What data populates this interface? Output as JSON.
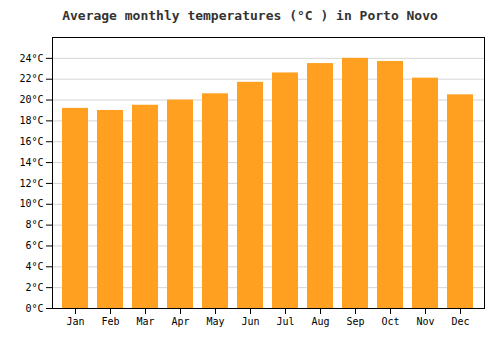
{
  "chart_data": {
    "type": "bar",
    "title": "Average monthly temperatures (°C ) in Porto Novo",
    "categories": [
      "Jan",
      "Feb",
      "Mar",
      "Apr",
      "May",
      "Jun",
      "Jul",
      "Aug",
      "Sep",
      "Oct",
      "Nov",
      "Dec"
    ],
    "values": [
      19.2,
      19.0,
      19.5,
      20.0,
      20.6,
      21.7,
      22.6,
      23.5,
      24.0,
      23.7,
      22.1,
      20.5
    ],
    "color": "#FFA020",
    "ylim": [
      0,
      26
    ],
    "yticks": [
      {
        "value": 0,
        "label": "0°C"
      },
      {
        "value": 2,
        "label": "2°C"
      },
      {
        "value": 4,
        "label": "4°C"
      },
      {
        "value": 6,
        "label": "6°C"
      },
      {
        "value": 8,
        "label": "8°C"
      },
      {
        "value": 10,
        "label": "10°C"
      },
      {
        "value": 12,
        "label": "12°C"
      },
      {
        "value": 14,
        "label": "14°C"
      },
      {
        "value": 16,
        "label": "16°C"
      },
      {
        "value": 18,
        "label": "18°C"
      },
      {
        "value": 20,
        "label": "20°C"
      },
      {
        "value": 22,
        "label": "22°C"
      },
      {
        "value": 24,
        "label": "24°C"
      }
    ],
    "grid": true
  }
}
